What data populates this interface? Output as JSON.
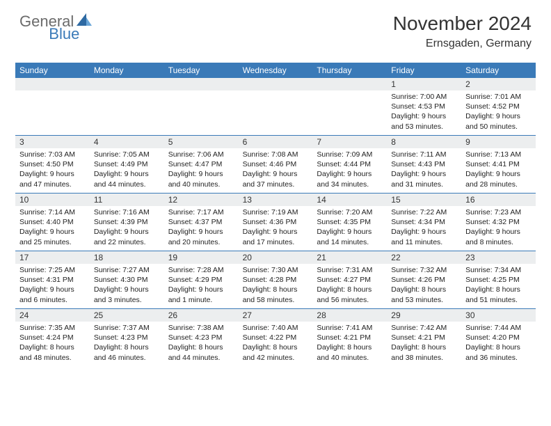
{
  "logo": {
    "text1": "General",
    "text2": "Blue"
  },
  "title": "November 2024",
  "location": "Ernsgaden, Germany",
  "colors": {
    "header_bg": "#3a7ab8",
    "header_text": "#ffffff",
    "daynum_bg": "#eceeef",
    "border": "#3a7ab8",
    "text": "#222222",
    "logo_gray": "#6b6b6b",
    "logo_blue": "#3a7ab8"
  },
  "day_names": [
    "Sunday",
    "Monday",
    "Tuesday",
    "Wednesday",
    "Thursday",
    "Friday",
    "Saturday"
  ],
  "weeks": [
    [
      {
        "empty": true
      },
      {
        "empty": true
      },
      {
        "empty": true
      },
      {
        "empty": true
      },
      {
        "empty": true
      },
      {
        "day": "1",
        "sunrise": "Sunrise: 7:00 AM",
        "sunset": "Sunset: 4:53 PM",
        "daylight": "Daylight: 9 hours and 53 minutes."
      },
      {
        "day": "2",
        "sunrise": "Sunrise: 7:01 AM",
        "sunset": "Sunset: 4:52 PM",
        "daylight": "Daylight: 9 hours and 50 minutes."
      }
    ],
    [
      {
        "day": "3",
        "sunrise": "Sunrise: 7:03 AM",
        "sunset": "Sunset: 4:50 PM",
        "daylight": "Daylight: 9 hours and 47 minutes."
      },
      {
        "day": "4",
        "sunrise": "Sunrise: 7:05 AM",
        "sunset": "Sunset: 4:49 PM",
        "daylight": "Daylight: 9 hours and 44 minutes."
      },
      {
        "day": "5",
        "sunrise": "Sunrise: 7:06 AM",
        "sunset": "Sunset: 4:47 PM",
        "daylight": "Daylight: 9 hours and 40 minutes."
      },
      {
        "day": "6",
        "sunrise": "Sunrise: 7:08 AM",
        "sunset": "Sunset: 4:46 PM",
        "daylight": "Daylight: 9 hours and 37 minutes."
      },
      {
        "day": "7",
        "sunrise": "Sunrise: 7:09 AM",
        "sunset": "Sunset: 4:44 PM",
        "daylight": "Daylight: 9 hours and 34 minutes."
      },
      {
        "day": "8",
        "sunrise": "Sunrise: 7:11 AM",
        "sunset": "Sunset: 4:43 PM",
        "daylight": "Daylight: 9 hours and 31 minutes."
      },
      {
        "day": "9",
        "sunrise": "Sunrise: 7:13 AM",
        "sunset": "Sunset: 4:41 PM",
        "daylight": "Daylight: 9 hours and 28 minutes."
      }
    ],
    [
      {
        "day": "10",
        "sunrise": "Sunrise: 7:14 AM",
        "sunset": "Sunset: 4:40 PM",
        "daylight": "Daylight: 9 hours and 25 minutes."
      },
      {
        "day": "11",
        "sunrise": "Sunrise: 7:16 AM",
        "sunset": "Sunset: 4:39 PM",
        "daylight": "Daylight: 9 hours and 22 minutes."
      },
      {
        "day": "12",
        "sunrise": "Sunrise: 7:17 AM",
        "sunset": "Sunset: 4:37 PM",
        "daylight": "Daylight: 9 hours and 20 minutes."
      },
      {
        "day": "13",
        "sunrise": "Sunrise: 7:19 AM",
        "sunset": "Sunset: 4:36 PM",
        "daylight": "Daylight: 9 hours and 17 minutes."
      },
      {
        "day": "14",
        "sunrise": "Sunrise: 7:20 AM",
        "sunset": "Sunset: 4:35 PM",
        "daylight": "Daylight: 9 hours and 14 minutes."
      },
      {
        "day": "15",
        "sunrise": "Sunrise: 7:22 AM",
        "sunset": "Sunset: 4:34 PM",
        "daylight": "Daylight: 9 hours and 11 minutes."
      },
      {
        "day": "16",
        "sunrise": "Sunrise: 7:23 AM",
        "sunset": "Sunset: 4:32 PM",
        "daylight": "Daylight: 9 hours and 8 minutes."
      }
    ],
    [
      {
        "day": "17",
        "sunrise": "Sunrise: 7:25 AM",
        "sunset": "Sunset: 4:31 PM",
        "daylight": "Daylight: 9 hours and 6 minutes."
      },
      {
        "day": "18",
        "sunrise": "Sunrise: 7:27 AM",
        "sunset": "Sunset: 4:30 PM",
        "daylight": "Daylight: 9 hours and 3 minutes."
      },
      {
        "day": "19",
        "sunrise": "Sunrise: 7:28 AM",
        "sunset": "Sunset: 4:29 PM",
        "daylight": "Daylight: 9 hours and 1 minute."
      },
      {
        "day": "20",
        "sunrise": "Sunrise: 7:30 AM",
        "sunset": "Sunset: 4:28 PM",
        "daylight": "Daylight: 8 hours and 58 minutes."
      },
      {
        "day": "21",
        "sunrise": "Sunrise: 7:31 AM",
        "sunset": "Sunset: 4:27 PM",
        "daylight": "Daylight: 8 hours and 56 minutes."
      },
      {
        "day": "22",
        "sunrise": "Sunrise: 7:32 AM",
        "sunset": "Sunset: 4:26 PM",
        "daylight": "Daylight: 8 hours and 53 minutes."
      },
      {
        "day": "23",
        "sunrise": "Sunrise: 7:34 AM",
        "sunset": "Sunset: 4:25 PM",
        "daylight": "Daylight: 8 hours and 51 minutes."
      }
    ],
    [
      {
        "day": "24",
        "sunrise": "Sunrise: 7:35 AM",
        "sunset": "Sunset: 4:24 PM",
        "daylight": "Daylight: 8 hours and 48 minutes."
      },
      {
        "day": "25",
        "sunrise": "Sunrise: 7:37 AM",
        "sunset": "Sunset: 4:23 PM",
        "daylight": "Daylight: 8 hours and 46 minutes."
      },
      {
        "day": "26",
        "sunrise": "Sunrise: 7:38 AM",
        "sunset": "Sunset: 4:23 PM",
        "daylight": "Daylight: 8 hours and 44 minutes."
      },
      {
        "day": "27",
        "sunrise": "Sunrise: 7:40 AM",
        "sunset": "Sunset: 4:22 PM",
        "daylight": "Daylight: 8 hours and 42 minutes."
      },
      {
        "day": "28",
        "sunrise": "Sunrise: 7:41 AM",
        "sunset": "Sunset: 4:21 PM",
        "daylight": "Daylight: 8 hours and 40 minutes."
      },
      {
        "day": "29",
        "sunrise": "Sunrise: 7:42 AM",
        "sunset": "Sunset: 4:21 PM",
        "daylight": "Daylight: 8 hours and 38 minutes."
      },
      {
        "day": "30",
        "sunrise": "Sunrise: 7:44 AM",
        "sunset": "Sunset: 4:20 PM",
        "daylight": "Daylight: 8 hours and 36 minutes."
      }
    ]
  ]
}
